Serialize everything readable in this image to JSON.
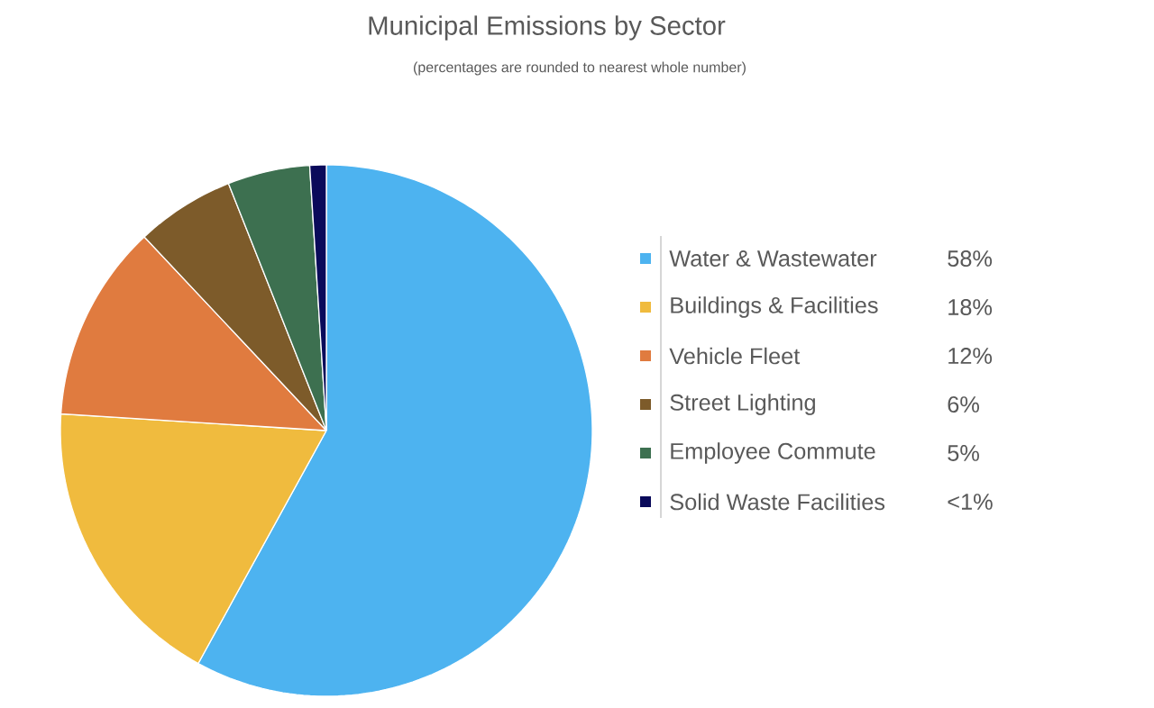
{
  "chart_data": {
    "type": "pie",
    "title": "Municipal Emissions by Sector",
    "subtitle": "(percentages are rounded to nearest whole number)",
    "categories": [
      "Water & Wastewater",
      "Buildings & Facilities",
      "Vehicle Fleet",
      "Street Lighting",
      "Employee Commute",
      "Solid Waste Facilities"
    ],
    "values": [
      58,
      18,
      12,
      6,
      5,
      1
    ],
    "value_labels": [
      "58%",
      "18%",
      "12%",
      "6%",
      "5%",
      "<1%"
    ],
    "colors": [
      "#4db3f0",
      "#f0bb3e",
      "#e07b3f",
      "#7d5b2a",
      "#3d7050",
      "#0a0a5a"
    ],
    "legend": "right"
  }
}
